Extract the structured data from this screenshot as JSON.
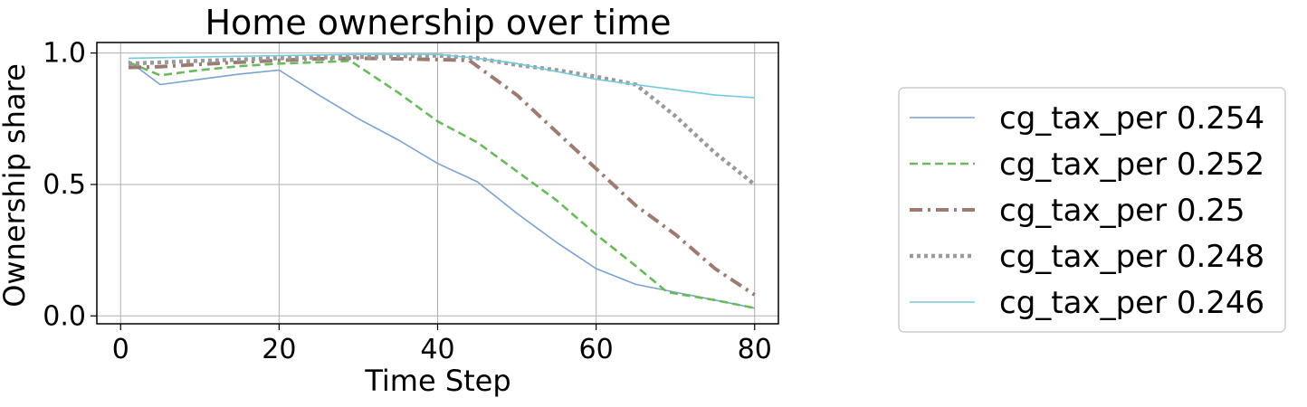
{
  "chart_data": {
    "type": "line",
    "title": "Home ownership over time",
    "xlabel": "Time Step",
    "ylabel": "Ownership share",
    "xlim": [
      -3,
      83
    ],
    "ylim": [
      -0.03,
      1.04
    ],
    "xticks": [
      0,
      20,
      40,
      60,
      80
    ],
    "xtick_labels": [
      "0",
      "20",
      "40",
      "60",
      "80"
    ],
    "yticks": [
      0.0,
      0.5,
      1.0
    ],
    "ytick_labels": [
      "0.0",
      "0.5",
      "1.0"
    ],
    "grid": true,
    "legend_position": "right",
    "series": [
      {
        "name": "cg_tax_per 0.254",
        "color": "#7ba2cf",
        "dash": "solid",
        "width": 1.6,
        "x": [
          1,
          5,
          10,
          15,
          20,
          25,
          30,
          35,
          40,
          45,
          50,
          55,
          60,
          65,
          70,
          75,
          80
        ],
        "y": [
          0.97,
          0.88,
          0.9,
          0.92,
          0.935,
          0.84,
          0.75,
          0.67,
          0.58,
          0.51,
          0.39,
          0.28,
          0.18,
          0.12,
          0.09,
          0.06,
          0.03
        ]
      },
      {
        "name": "cg_tax_per 0.252",
        "color": "#6ab95c",
        "dash": "dashed",
        "width": 2.6,
        "x": [
          1,
          5,
          10,
          15,
          20,
          25,
          29,
          35,
          40,
          45,
          50,
          55,
          60,
          65,
          69,
          75,
          80
        ],
        "y": [
          0.965,
          0.915,
          0.935,
          0.95,
          0.96,
          0.965,
          0.97,
          0.85,
          0.74,
          0.66,
          0.55,
          0.44,
          0.31,
          0.19,
          0.09,
          0.06,
          0.03
        ]
      },
      {
        "name": "cg_tax_per 0.25",
        "color": "#9c7b72",
        "dash": "dashdot",
        "width": 4,
        "x": [
          1,
          5,
          10,
          15,
          20,
          25,
          30,
          35,
          40,
          44,
          50,
          55,
          60,
          65,
          70,
          75,
          80
        ],
        "y": [
          0.945,
          0.948,
          0.957,
          0.965,
          0.972,
          0.978,
          0.98,
          0.978,
          0.975,
          0.972,
          0.84,
          0.7,
          0.56,
          0.42,
          0.31,
          0.18,
          0.08
        ]
      },
      {
        "name": "cg_tax_per 0.248",
        "color": "#9a9a9a",
        "dash": "dotted",
        "width": 4.5,
        "x": [
          1,
          10,
          20,
          30,
          40,
          45,
          50,
          55,
          60,
          65,
          70,
          75,
          80
        ],
        "y": [
          0.96,
          0.97,
          0.98,
          0.985,
          0.99,
          0.98,
          0.955,
          0.935,
          0.91,
          0.88,
          0.76,
          0.62,
          0.5
        ]
      },
      {
        "name": "cg_tax_per 0.246",
        "color": "#74c9dc",
        "dash": "solid",
        "width": 1.6,
        "x": [
          1,
          10,
          20,
          30,
          40,
          45,
          50,
          55,
          60,
          65,
          70,
          75,
          80
        ],
        "y": [
          0.98,
          0.985,
          0.99,
          0.995,
          0.995,
          0.98,
          0.96,
          0.93,
          0.9,
          0.88,
          0.86,
          0.84,
          0.83
        ]
      }
    ]
  }
}
